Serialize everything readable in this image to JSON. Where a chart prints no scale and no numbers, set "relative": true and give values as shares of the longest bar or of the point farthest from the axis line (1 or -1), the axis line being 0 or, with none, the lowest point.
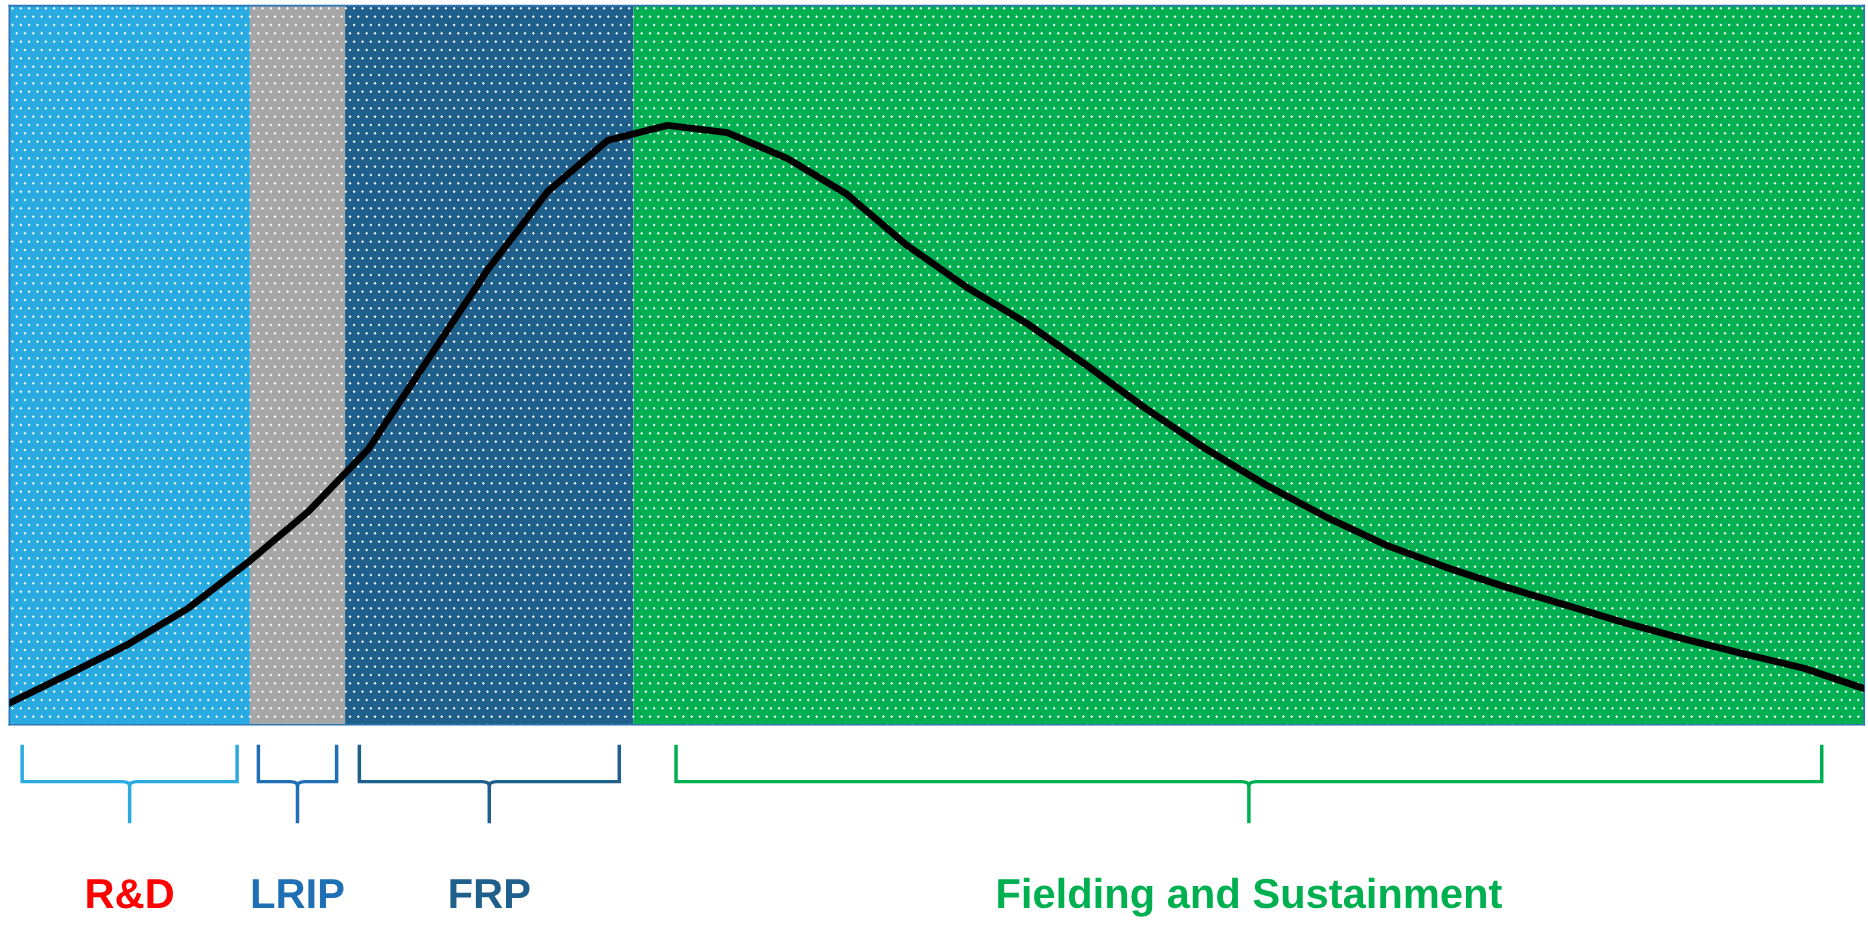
{
  "chart_data": {
    "type": "line",
    "relative": true,
    "categories": [
      null,
      null,
      null,
      null,
      null,
      null,
      null,
      null,
      null,
      null,
      null,
      null,
      null,
      null,
      null,
      null,
      null,
      null,
      null,
      null,
      null,
      null,
      null,
      null,
      null,
      null,
      null,
      null,
      null,
      null,
      null,
      null
    ],
    "series": [
      {
        "color": "#000000",
        "values": [
          0.036,
          0.085,
          0.135,
          0.195,
          0.272,
          0.356,
          0.46,
          0.61,
          0.76,
          0.89,
          0.975,
          1.0,
          0.988,
          0.945,
          0.885,
          0.8,
          0.73,
          0.67,
          0.6,
          0.527,
          0.46,
          0.4,
          0.347,
          0.3,
          0.263,
          0.23,
          0.2,
          0.17,
          0.143,
          0.118,
          0.094,
          0.06
        ]
      }
    ],
    "annotations": [
      "R&D",
      "LRIP",
      "FRP",
      "Fielding and Sustainment"
    ],
    "legend": false,
    "tick_labels": false
  }
}
